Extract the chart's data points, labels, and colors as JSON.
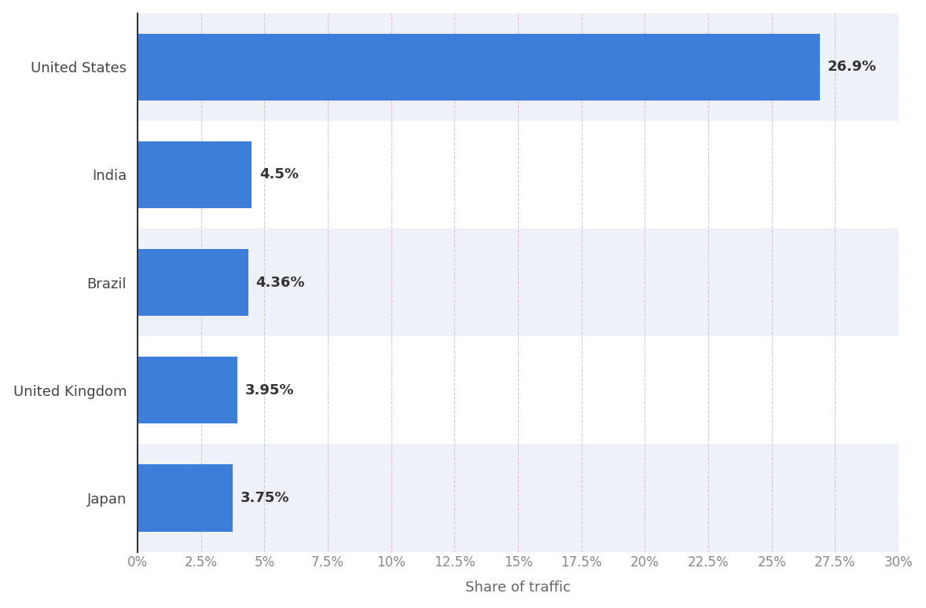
{
  "categories": [
    "Japan",
    "United Kingdom",
    "Brazil",
    "India",
    "United States"
  ],
  "values": [
    3.75,
    3.95,
    4.36,
    4.5,
    26.9
  ],
  "labels": [
    "3.75%",
    "3.95%",
    "4.36%",
    "4.5%",
    "26.9%"
  ],
  "bar_color": "#3d7edb",
  "background_color": "#ffffff",
  "plot_background_color": "#ffffff",
  "row_colors": [
    "#eef1f7",
    "#ffffff",
    "#eef1f7",
    "#ffffff",
    "#eef1f7"
  ],
  "xlabel": "Share of traffic",
  "xlim": [
    0,
    30
  ],
  "xticks": [
    0,
    2.5,
    5,
    7.5,
    10,
    12.5,
    15,
    17.5,
    20,
    22.5,
    25,
    27.5,
    30
  ],
  "xtick_labels": [
    "0%",
    "2.5%",
    "5%",
    "7.5%",
    "10%",
    "12.5%",
    "15%",
    "17.5%",
    "20%",
    "22.5%",
    "25%",
    "27.5%",
    "30%"
  ],
  "label_fontsize": 13,
  "tick_fontsize": 12,
  "xlabel_fontsize": 13,
  "bar_height": 0.62
}
